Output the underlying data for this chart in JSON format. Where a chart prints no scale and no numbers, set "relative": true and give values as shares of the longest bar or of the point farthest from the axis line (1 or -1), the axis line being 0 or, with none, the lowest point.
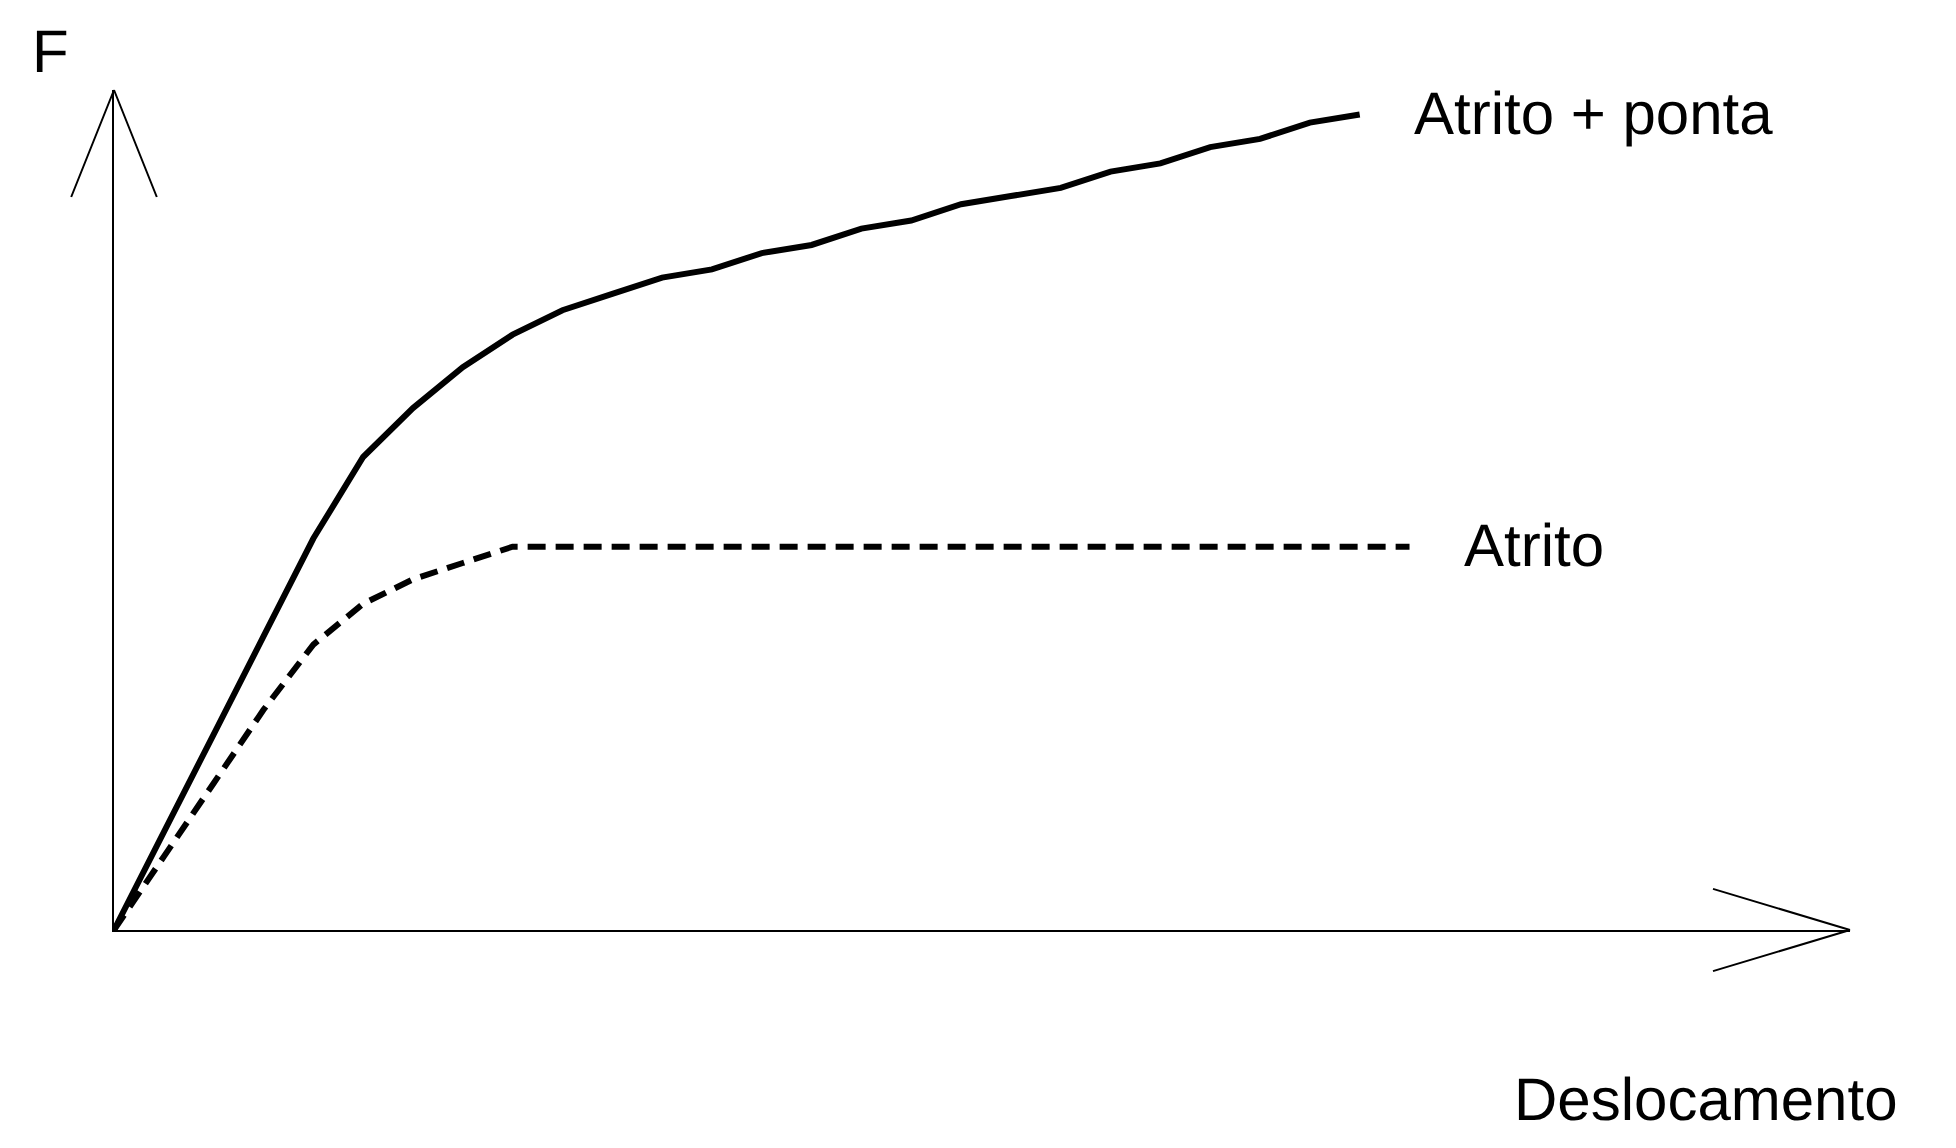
{
  "chart_data": {
    "type": "line",
    "relative": true,
    "xlabel": "Deslocamento",
    "ylabel": "F",
    "legend": false,
    "marker": "none",
    "categories": [
      null,
      null,
      null,
      null,
      null,
      null,
      null,
      null,
      null,
      null,
      null,
      null,
      null,
      null,
      null,
      null,
      null,
      null,
      null,
      null,
      null,
      null,
      null,
      null,
      null,
      null,
      null
    ],
    "series": [
      {
        "name": "Atrito + ponta",
        "color": "#000000",
        "line_style": "solid",
        "values": [
          0,
          0.12,
          0.24,
          0.36,
          0.48,
          0.58,
          0.64,
          0.69,
          0.73,
          0.76,
          0.78,
          0.8,
          0.81,
          0.83,
          0.84,
          0.86,
          0.87,
          0.89,
          0.9,
          0.91,
          0.93,
          0.94,
          0.96,
          0.97,
          0.99,
          1,
          null
        ]
      },
      {
        "name": "Atrito",
        "color": "#000000",
        "line_style": "dashed",
        "values": [
          0,
          0.09,
          0.18,
          0.27,
          0.35,
          0.4,
          0.43,
          0.45,
          0.47,
          0.47,
          0.47,
          0.47,
          0.47,
          0.47,
          0.47,
          0.47,
          0.47,
          0.47,
          0.47,
          0.47,
          0.47,
          0.47,
          0.47,
          0.47,
          0.47,
          0.47,
          0.47
        ]
      }
    ]
  }
}
